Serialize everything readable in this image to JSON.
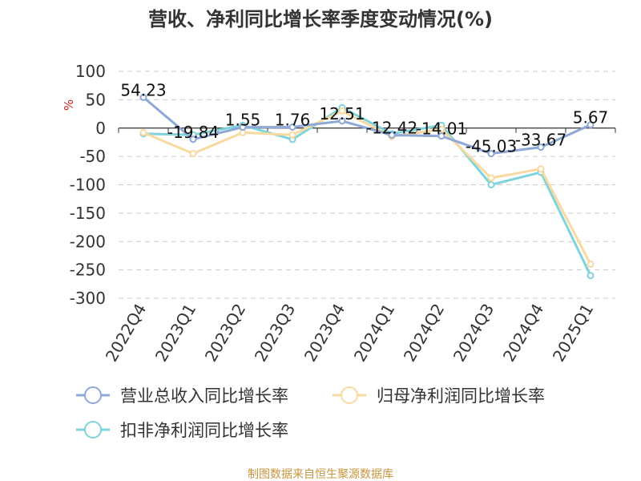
{
  "chart_data": {
    "type": "line",
    "title": "营收、净利同比增长率季度变动情况(%)",
    "ylabel": "%",
    "ylim": [
      -300,
      100
    ],
    "yticks": [
      100,
      50,
      0,
      -50,
      -100,
      -150,
      -200,
      -250,
      -300
    ],
    "grid": true,
    "legend_position": "bottom",
    "categories": [
      "2022Q4",
      "2023Q1",
      "2023Q2",
      "2023Q3",
      "2023Q4",
      "2024Q1",
      "2024Q2",
      "2024Q3",
      "2024Q4",
      "2025Q1"
    ],
    "series": [
      {
        "name": "营业总收入同比增长率",
        "color": "#8fa8d8",
        "values": [
          54.23,
          -19.84,
          1.55,
          1.76,
          12.51,
          -12.42,
          -14.01,
          -45.03,
          -33.67,
          5.67
        ],
        "labels": [
          "54.23",
          "-19.84",
          "1.55",
          "1.76",
          "12.51",
          "-12.42",
          "-14.01",
          "-45.03",
          "-33.67",
          "5.67"
        ]
      },
      {
        "name": "归母净利润同比增长率",
        "color": "#f8d9a0",
        "values": [
          -8,
          -45,
          -8,
          -12,
          30,
          -15,
          -2,
          -88,
          -72,
          -240
        ]
      },
      {
        "name": "扣非净利润同比增长率",
        "color": "#7fd3dc",
        "values": [
          -10,
          -12,
          5,
          -20,
          36,
          -10,
          5,
          -100,
          -78,
          -260
        ]
      }
    ],
    "source_note": "制图数据来自恒生聚源数据库"
  }
}
